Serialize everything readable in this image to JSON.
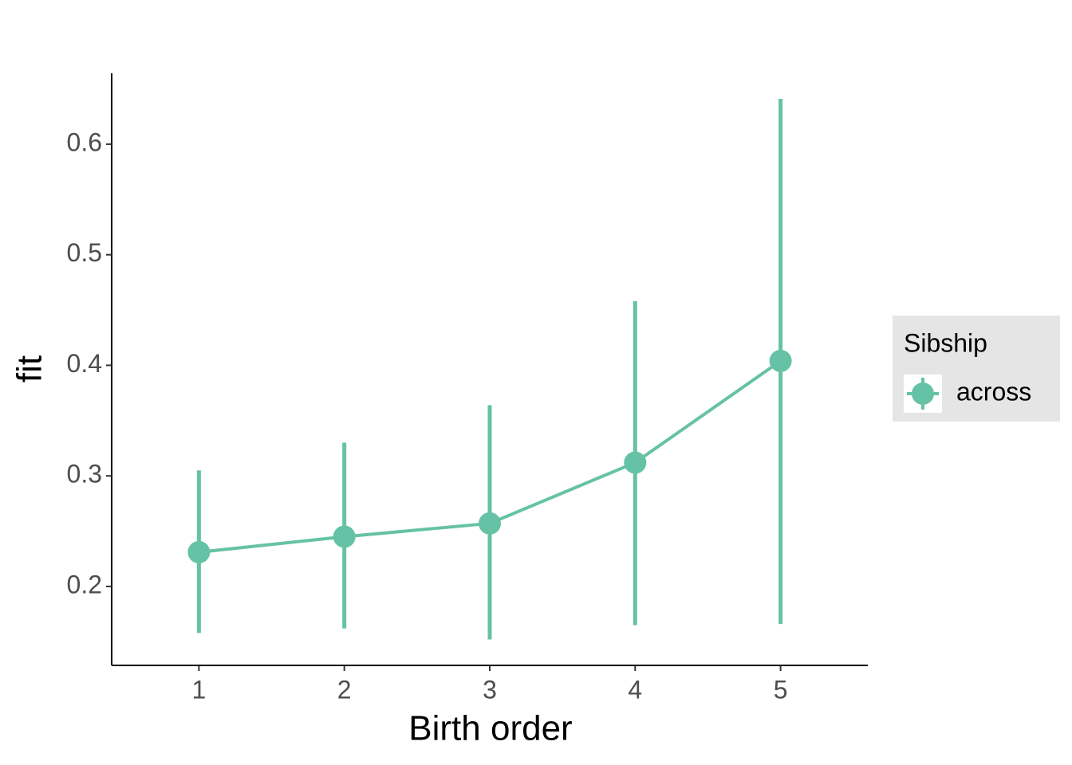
{
  "chart_data": {
    "type": "line",
    "x_label": "Birth order",
    "y_label": "fit",
    "x": [
      1,
      2,
      3,
      4,
      5
    ],
    "series": [
      {
        "name": "across",
        "color": "#66c2a5",
        "values": [
          0.231,
          0.245,
          0.257,
          0.312,
          0.404
        ],
        "lower": [
          0.158,
          0.162,
          0.152,
          0.165,
          0.166
        ],
        "upper": [
          0.305,
          0.33,
          0.364,
          0.458,
          0.641
        ]
      }
    ],
    "legend_title": "Sibship",
    "legend_position": "right",
    "xlim": [
      0.4,
      5.6
    ],
    "xticks": [
      1,
      2,
      3,
      4,
      5
    ],
    "ylim": [
      0.1286,
      0.6641
    ],
    "yticks": [
      0.2,
      0.3,
      0.4,
      0.5,
      0.6
    ],
    "grid": false
  }
}
